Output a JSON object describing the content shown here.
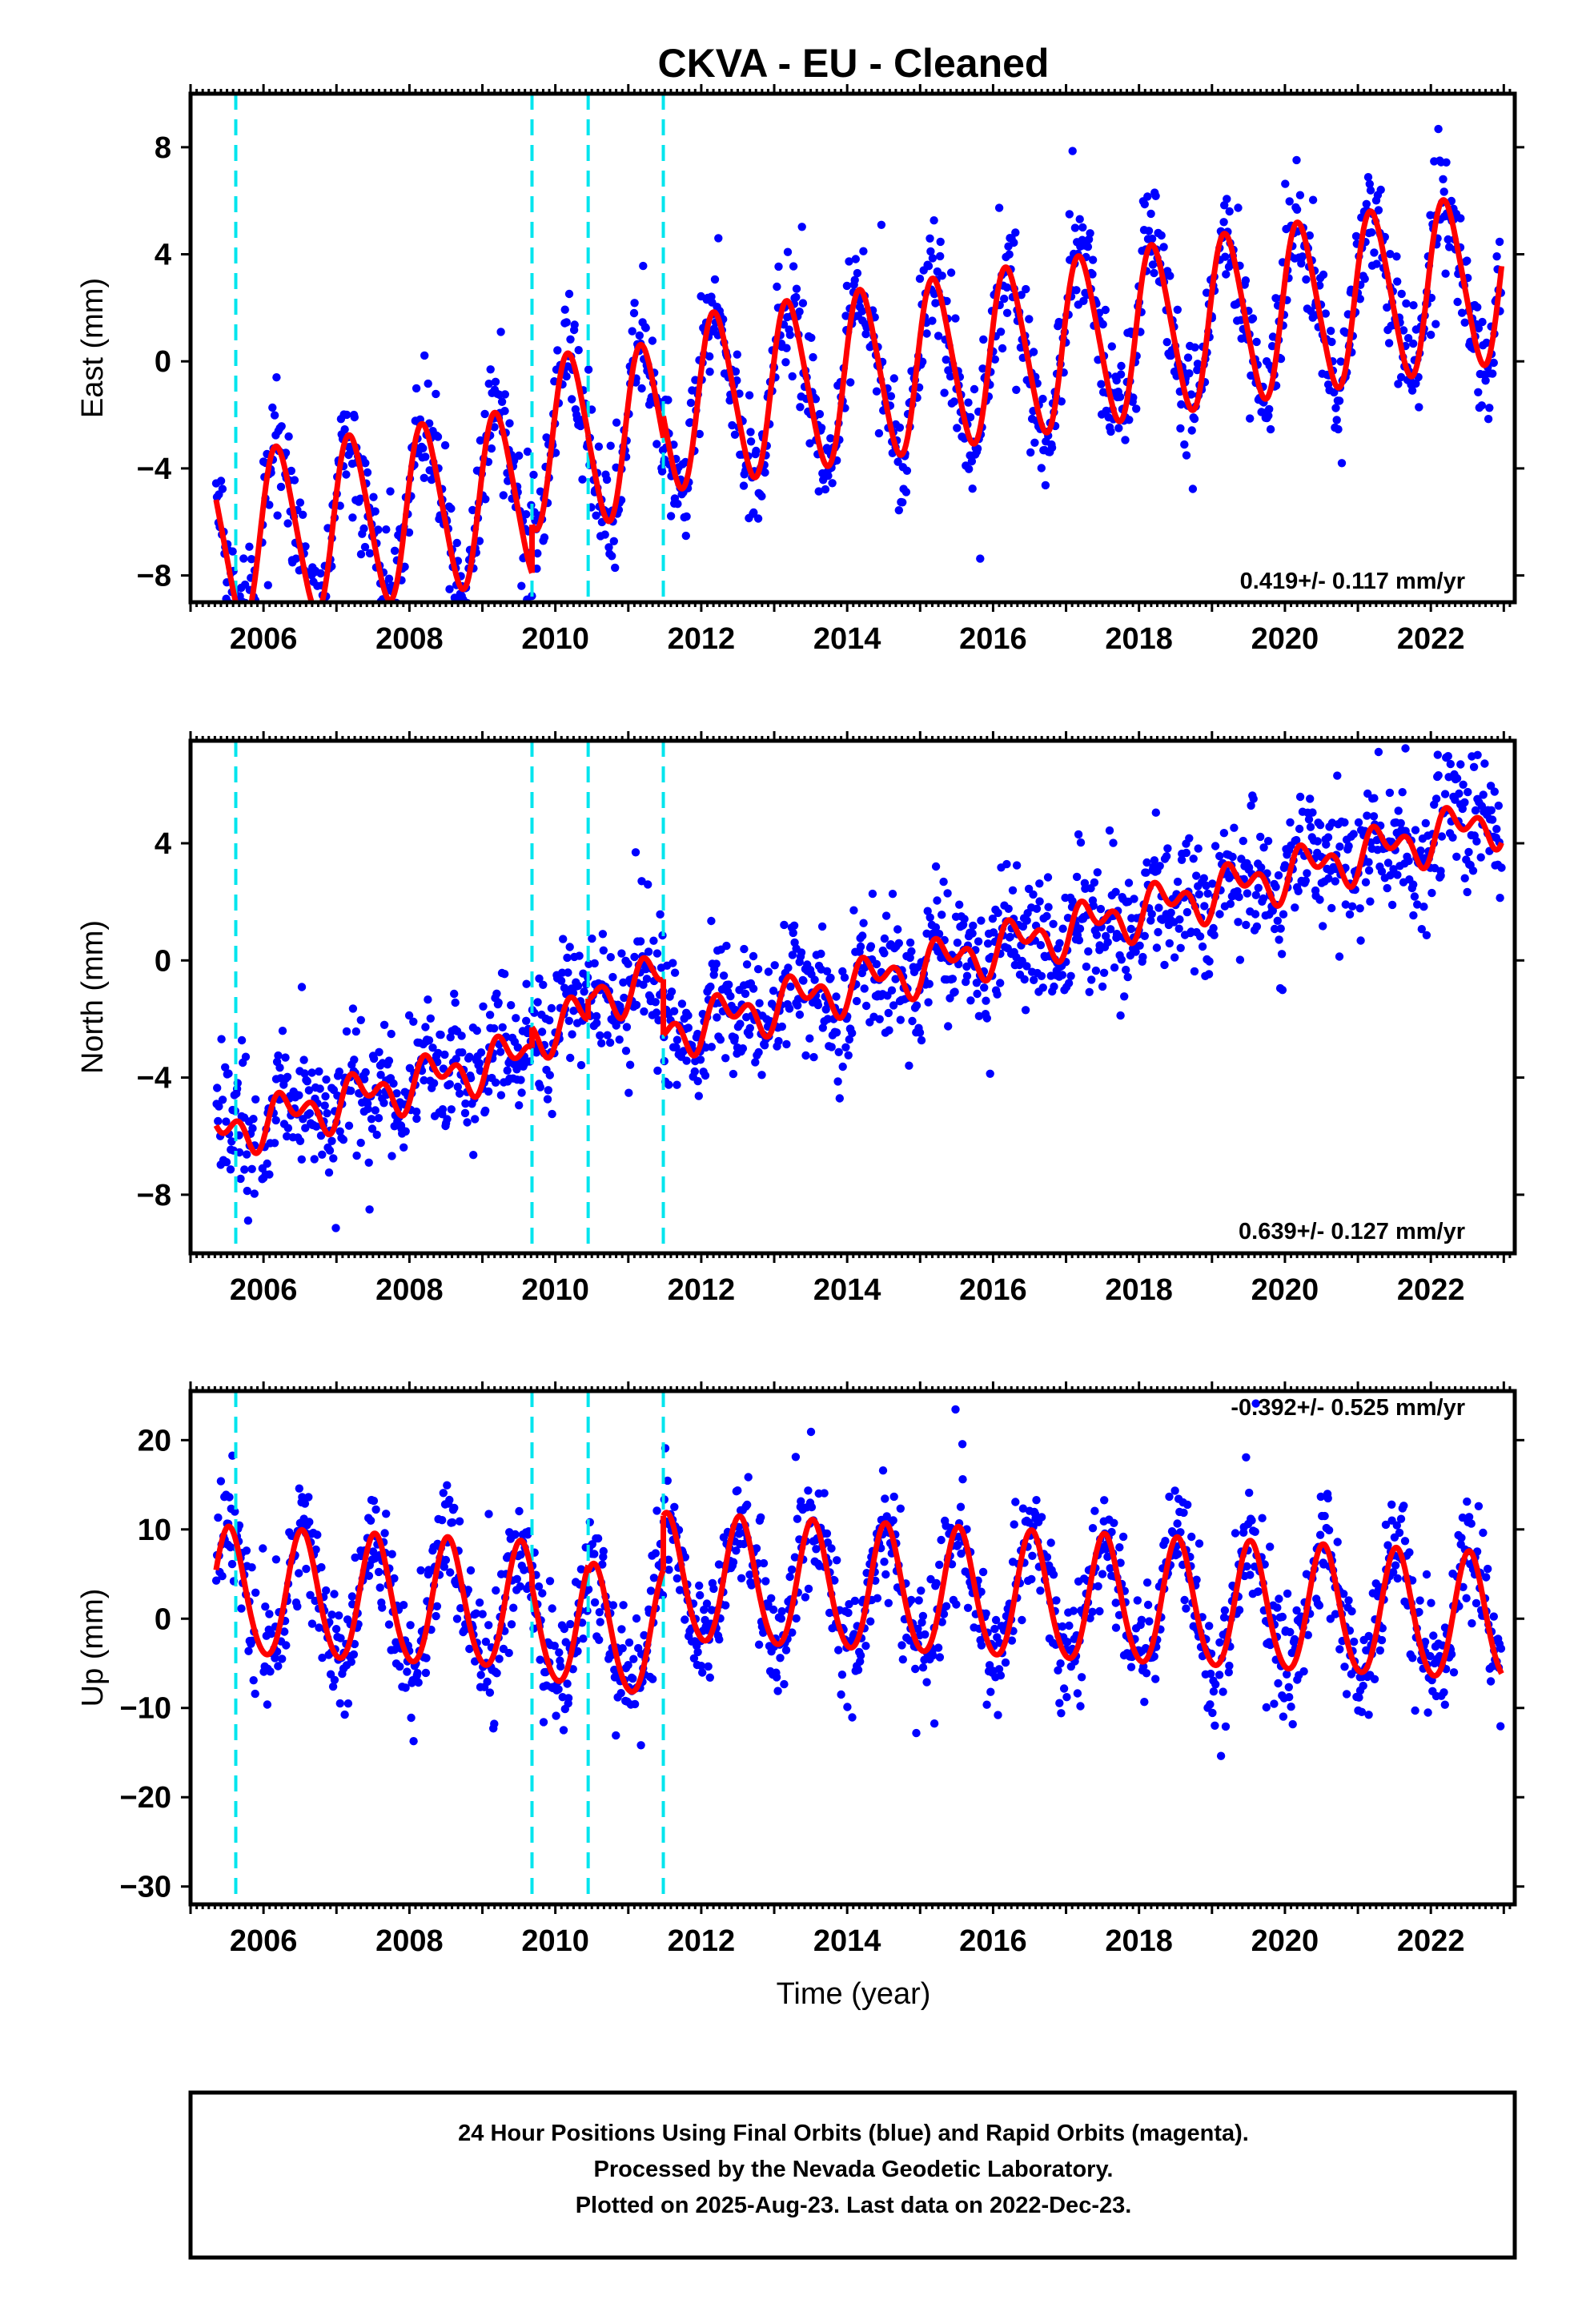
{
  "title": "CKVA  - EU - Cleaned",
  "xlabel": "Time (year)",
  "footer": {
    "line1": "24 Hour Positions Using Final Orbits (blue) and Rapid Orbits (magenta).",
    "line2": "Processed by the Nevada Geodetic Laboratory.",
    "line3": "Plotted on 2025-Aug-23. Last data on 2022-Dec-23."
  },
  "colors": {
    "data_points": "#0000ff",
    "model_fit": "#ff0000",
    "equipment_change": "#00e5ee",
    "frame": "#000000",
    "background": "#ffffff"
  },
  "chart_data": [
    {
      "type": "scatter",
      "id": "east",
      "ylabel": "East (mm)",
      "rate_label": "0.419+/- 0.117 mm/yr",
      "xlim": [
        2005.0,
        2023.15
      ],
      "ylim": [
        -9,
        10
      ],
      "xticks": [
        2006,
        2008,
        2010,
        2012,
        2014,
        2016,
        2018,
        2020,
        2022
      ],
      "yticks": [
        -8,
        -4,
        0,
        4,
        8
      ],
      "grid": false,
      "legend": "none",
      "equipment_change_epochs": [
        2005.62,
        2009.68,
        2010.45,
        2011.48
      ],
      "data_span": [
        2005.35,
        2022.97
      ],
      "model": {
        "segments": [
          {
            "start": 2005.35,
            "end": 2009.68,
            "offset": -3.1
          },
          {
            "start": 2009.68,
            "end": 2010.45,
            "offset": -1.3
          },
          {
            "start": 2010.45,
            "end": 2011.48,
            "offset": -1.4
          },
          {
            "start": 2011.48,
            "end": 2022.97,
            "offset": -0.6
          }
        ],
        "trend_mm_per_yr": 0.419,
        "ref_epoch": 2014.0,
        "annual_sin": 3.0,
        "annual_cos": 0.9,
        "semiannual_sin": 0.3,
        "semiannual_cos": 0.2
      },
      "scatter_mm": 1.1,
      "outlier_mm": 3.0,
      "approx_points": 1500
    },
    {
      "type": "scatter",
      "id": "north",
      "ylabel": "North (mm)",
      "rate_label": "0.639+/- 0.127 mm/yr",
      "xlim": [
        2005.0,
        2023.15
      ],
      "ylim": [
        -10,
        7.5
      ],
      "xticks": [
        2006,
        2008,
        2010,
        2012,
        2014,
        2016,
        2018,
        2020,
        2022
      ],
      "yticks": [
        -8,
        -4,
        0,
        4
      ],
      "grid": false,
      "legend": "none",
      "equipment_change_epochs": [
        2005.62,
        2009.68,
        2010.45,
        2011.48
      ],
      "data_span": [
        2005.35,
        2022.97
      ],
      "model": {
        "segments": [
          {
            "start": 2005.35,
            "end": 2009.68,
            "offset": -0.4
          },
          {
            "start": 2009.68,
            "end": 2010.45,
            "offset": 0.3
          },
          {
            "start": 2010.45,
            "end": 2011.48,
            "offset": 1.0
          },
          {
            "start": 2011.48,
            "end": 2022.97,
            "offset": -0.9
          }
        ],
        "trend_mm_per_yr": 0.639,
        "ref_epoch": 2014.0,
        "annual_sin": 0.5,
        "annual_cos": -0.3,
        "semiannual_sin": 0.4,
        "semiannual_cos": -0.3
      },
      "scatter_mm": 1.1,
      "outlier_mm": 2.8,
      "approx_points": 1500
    },
    {
      "type": "scatter",
      "id": "up",
      "ylabel": "Up (mm)",
      "rate_label": "-0.392+/- 0.525 mm/yr",
      "xlim": [
        2005.0,
        2023.15
      ],
      "ylim": [
        -32,
        25.5
      ],
      "xticks": [
        2006,
        2008,
        2010,
        2012,
        2014,
        2016,
        2018,
        2020,
        2022
      ],
      "yticks": [
        -30,
        -20,
        -10,
        0,
        10,
        20
      ],
      "grid": false,
      "legend": "none",
      "equipment_change_epochs": [
        2005.62,
        2009.68,
        2010.45,
        2011.48
      ],
      "data_span": [
        2005.35,
        2022.97
      ],
      "model": {
        "segments": [
          {
            "start": 2005.35,
            "end": 2009.68,
            "offset": -0.6
          },
          {
            "start": 2009.68,
            "end": 2010.45,
            "offset": -2.0
          },
          {
            "start": 2010.45,
            "end": 2011.48,
            "offset": -2.8
          },
          {
            "start": 2011.48,
            "end": 2022.97,
            "offset": 3.3
          }
        ],
        "trend_mm_per_yr": -0.392,
        "ref_epoch": 2014.0,
        "annual_sin": -1.5,
        "annual_cos": -6.9,
        "semiannual_sin": 0.0,
        "semiannual_cos": 0.6
      },
      "scatter_mm": 3.3,
      "outlier_mm": 9.0,
      "approx_points": 1500
    }
  ]
}
